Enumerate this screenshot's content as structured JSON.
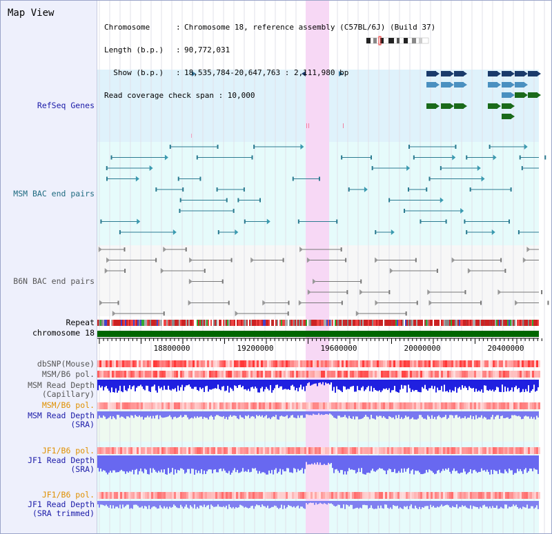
{
  "window": {
    "title": "Map View"
  },
  "info": {
    "rows": [
      {
        "key": "Chromosome",
        "value": "Chromosome 18, reference assembly (C57BL/6J) (Build 37)"
      },
      {
        "key": "Length (b.p.)",
        "value": "90,772,031"
      },
      {
        "key": "  Show (b.p.)",
        "value": "18,535,784-20,647,763 : 2,111,980 bp"
      }
    ],
    "coverage": "Read coverage check span : 10,000"
  },
  "tracks": {
    "refseq": "RefSeq Genes",
    "msm_bac": "MSM BAC end pairs",
    "b6n_bac": "B6N BAC end pairs",
    "repeat": "Repeat",
    "chromosome": "chromosome 18",
    "dbsnp": "dbSNP(Mouse)",
    "msm_b6_pol_1": "MSM/B6 pol.",
    "msm_read_depth_cap_1": "MSM Read Depth",
    "msm_read_depth_cap_2": "(Capillary)",
    "msm_b6_pol_2": "MSM/B6 pol.",
    "msm_read_depth_sra_1": "MSM Read Depth",
    "msm_read_depth_sra_2": "(SRA)",
    "jf1_b6_pol_1": "JF1/B6 pol.",
    "jf1_read_depth_1": "JF1 Read Depth",
    "jf1_read_depth_2": "(SRA)",
    "jf1_b6_pol_2": "JF1/B6 pol.",
    "jf1_read_depth_trim_1": "JF1 Read Depth",
    "jf1_read_depth_trim_2": "(SRA trimmed)"
  },
  "axis": {
    "ticks": [
      "18800000",
      "19200000",
      "19600000",
      "20000000",
      "20400000"
    ]
  },
  "colors": {
    "refseq_bg": "#dff2fb",
    "msm_bg": "#e6fbfb",
    "b6n_bg": "#f7f7f7",
    "highlight": "#f7d8f5",
    "label_blue": "#1a1aa8",
    "label_teal": "#1e6a80",
    "label_gray": "#555555",
    "label_orange": "#e09000",
    "chromosome_bar": "#006600",
    "depth_dark": "#1a1ae0",
    "depth_light": "#7878f0"
  }
}
